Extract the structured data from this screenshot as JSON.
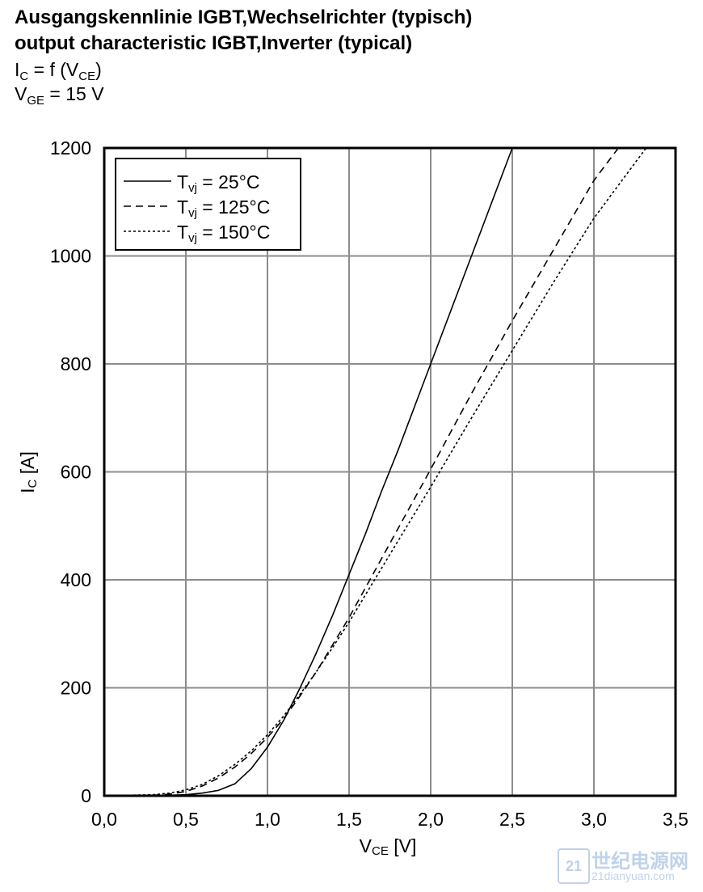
{
  "header": {
    "title_de": "Ausgangskennlinie IGBT,Wechselrichter (typisch)",
    "title_en": "output characteristic IGBT,Inverter (typical)",
    "formula": {
      "a": "I",
      "a_sub": "C",
      "b": " = f (V",
      "b_sub": "CE",
      "c": ")"
    },
    "condition": {
      "a": "V",
      "a_sub": "GE",
      "b": " = 15 V"
    }
  },
  "chart_data": {
    "type": "line",
    "xlabel": {
      "main": "V",
      "sub": "CE",
      "rest": " [V]"
    },
    "ylabel": {
      "main": "I",
      "sub": "C",
      "rest": " [A]"
    },
    "xlim": [
      0,
      3.5
    ],
    "ylim": [
      0,
      1200
    ],
    "xticks": [
      0,
      0.5,
      1.0,
      1.5,
      2.0,
      2.5,
      3.0,
      3.5
    ],
    "xtick_labels": [
      "0,0",
      "0,5",
      "1,0",
      "1,5",
      "2,0",
      "2,5",
      "3,0",
      "3,5"
    ],
    "yticks": [
      0,
      200,
      400,
      600,
      800,
      1000,
      1200
    ],
    "ytick_labels": [
      "0",
      "200",
      "400",
      "600",
      "800",
      "1000",
      "1200"
    ],
    "grid": true,
    "legend_position": "top-left",
    "series": [
      {
        "name": "Tvj = 25°C",
        "legend": {
          "a": "T",
          "sub": "vj",
          "b": " = 25°C"
        },
        "style": "solid",
        "points": [
          [
            0,
            0
          ],
          [
            0.4,
            1
          ],
          [
            0.5,
            2
          ],
          [
            0.6,
            5
          ],
          [
            0.7,
            10
          ],
          [
            0.8,
            22
          ],
          [
            0.9,
            50
          ],
          [
            1.0,
            90
          ],
          [
            1.1,
            140
          ],
          [
            1.2,
            200
          ],
          [
            1.3,
            265
          ],
          [
            1.4,
            335
          ],
          [
            1.5,
            410
          ],
          [
            1.6,
            485
          ],
          [
            1.7,
            565
          ],
          [
            1.8,
            640
          ],
          [
            1.9,
            720
          ],
          [
            2.0,
            800
          ],
          [
            2.25,
            1000
          ],
          [
            2.5,
            1200
          ]
        ]
      },
      {
        "name": "Tvj = 125°C",
        "legend": {
          "a": "T",
          "sub": "vj",
          "b": " = 125°C"
        },
        "style": "dashed",
        "points": [
          [
            0,
            0
          ],
          [
            0.3,
            1
          ],
          [
            0.4,
            3
          ],
          [
            0.5,
            8
          ],
          [
            0.6,
            18
          ],
          [
            0.7,
            33
          ],
          [
            0.8,
            53
          ],
          [
            0.9,
            78
          ],
          [
            1.0,
            108
          ],
          [
            1.1,
            143
          ],
          [
            1.2,
            185
          ],
          [
            1.3,
            230
          ],
          [
            1.4,
            280
          ],
          [
            1.5,
            330
          ],
          [
            1.6,
            385
          ],
          [
            1.7,
            440
          ],
          [
            1.8,
            495
          ],
          [
            1.9,
            550
          ],
          [
            2.0,
            605
          ],
          [
            2.25,
            745
          ],
          [
            2.5,
            880
          ],
          [
            2.75,
            1010
          ],
          [
            3.0,
            1140
          ],
          [
            3.15,
            1200
          ]
        ]
      },
      {
        "name": "Tvj = 150°C",
        "legend": {
          "a": "T",
          "sub": "vj",
          "b": " = 150°C"
        },
        "style": "dotted",
        "points": [
          [
            0,
            0
          ],
          [
            0.3,
            2
          ],
          [
            0.4,
            5
          ],
          [
            0.5,
            11
          ],
          [
            0.6,
            21
          ],
          [
            0.7,
            37
          ],
          [
            0.8,
            58
          ],
          [
            0.9,
            83
          ],
          [
            1.0,
            113
          ],
          [
            1.1,
            148
          ],
          [
            1.2,
            188
          ],
          [
            1.3,
            230
          ],
          [
            1.4,
            275
          ],
          [
            1.5,
            322
          ],
          [
            1.6,
            372
          ],
          [
            1.7,
            422
          ],
          [
            1.8,
            472
          ],
          [
            1.9,
            522
          ],
          [
            2.0,
            572
          ],
          [
            2.25,
            700
          ],
          [
            2.5,
            825
          ],
          [
            2.75,
            950
          ],
          [
            3.0,
            1070
          ],
          [
            3.32,
            1200
          ]
        ]
      }
    ]
  },
  "watermark": {
    "logo": "21",
    "cn": "世纪电源网",
    "url": "21dianyuan.com"
  }
}
